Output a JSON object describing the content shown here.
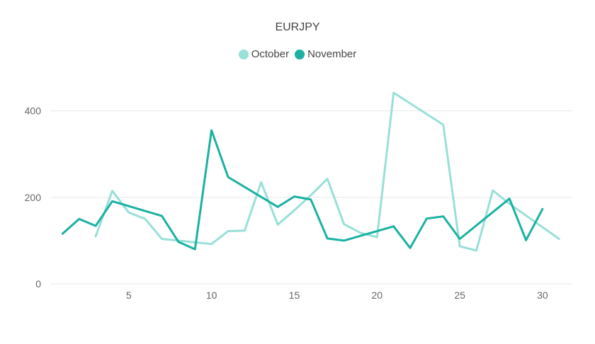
{
  "chart_data": {
    "type": "line",
    "title": "EURJPY",
    "xlabel": "",
    "ylabel": "",
    "xlim": [
      0.3,
      31.8
    ],
    "ylim": [
      0,
      460
    ],
    "xticks": [
      5,
      10,
      15,
      20,
      25,
      30
    ],
    "yticks": [
      0,
      200,
      400
    ],
    "grid": "horizontal",
    "legend_position": "top-center",
    "series": [
      {
        "name": "October",
        "color": "#98e0d8",
        "points": [
          {
            "x": 3,
            "y": 110
          },
          {
            "x": 4,
            "y": 215
          },
          {
            "x": 5,
            "y": 165
          },
          {
            "x": 6,
            "y": 150
          },
          {
            "x": 7,
            "y": 104
          },
          {
            "x": 8,
            "y": 100
          },
          {
            "x": 9,
            "y": 96
          },
          {
            "x": 10,
            "y": 92
          },
          {
            "x": 11,
            "y": 122
          },
          {
            "x": 12,
            "y": 123
          },
          {
            "x": 13,
            "y": 235
          },
          {
            "x": 14,
            "y": 137
          },
          {
            "x": 15,
            "y": 170
          },
          {
            "x": 16,
            "y": 205
          },
          {
            "x": 17,
            "y": 243
          },
          {
            "x": 18,
            "y": 138
          },
          {
            "x": 19,
            "y": 118
          },
          {
            "x": 20,
            "y": 108
          },
          {
            "x": 21,
            "y": 442
          },
          {
            "x": 24,
            "y": 368
          },
          {
            "x": 25,
            "y": 87
          },
          {
            "x": 26,
            "y": 77
          },
          {
            "x": 27,
            "y": 216
          },
          {
            "x": 28,
            "y": 185
          },
          {
            "x": 31,
            "y": 104
          }
        ]
      },
      {
        "name": "November",
        "color": "#1ab1a1",
        "points": [
          {
            "x": 1,
            "y": 116
          },
          {
            "x": 2,
            "y": 150
          },
          {
            "x": 3,
            "y": 134
          },
          {
            "x": 4,
            "y": 191
          },
          {
            "x": 7,
            "y": 157
          },
          {
            "x": 8,
            "y": 97
          },
          {
            "x": 9,
            "y": 80
          },
          {
            "x": 10,
            "y": 355
          },
          {
            "x": 11,
            "y": 247
          },
          {
            "x": 14,
            "y": 178
          },
          {
            "x": 15,
            "y": 202
          },
          {
            "x": 16,
            "y": 195
          },
          {
            "x": 17,
            "y": 105
          },
          {
            "x": 18,
            "y": 100
          },
          {
            "x": 21,
            "y": 133
          },
          {
            "x": 22,
            "y": 83
          },
          {
            "x": 23,
            "y": 151
          },
          {
            "x": 24,
            "y": 156
          },
          {
            "x": 25,
            "y": 104
          },
          {
            "x": 28,
            "y": 197
          },
          {
            "x": 29,
            "y": 101
          },
          {
            "x": 30,
            "y": 173
          }
        ]
      }
    ]
  }
}
